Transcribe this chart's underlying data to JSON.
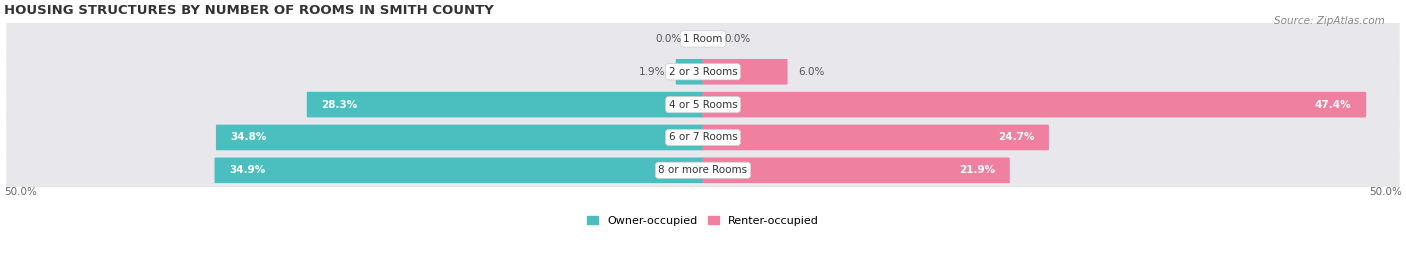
{
  "title": "HOUSING STRUCTURES BY NUMBER OF ROOMS IN SMITH COUNTY",
  "source": "Source: ZipAtlas.com",
  "categories": [
    "1 Room",
    "2 or 3 Rooms",
    "4 or 5 Rooms",
    "6 or 7 Rooms",
    "8 or more Rooms"
  ],
  "owner_values": [
    0.0,
    1.9,
    28.3,
    34.8,
    34.9
  ],
  "renter_values": [
    0.0,
    6.0,
    47.4,
    24.7,
    21.9
  ],
  "max_value": 50.0,
  "owner_color": "#4BBFBF",
  "renter_color": "#F080A0",
  "row_bg_color": "#E8E8EC",
  "label_color_dark": "#555555",
  "owner_label": "Owner-occupied",
  "renter_label": "Renter-occupied",
  "axis_label_left": "50.0%",
  "axis_label_right": "50.0%",
  "title_fontsize": 9.5,
  "source_fontsize": 7.5,
  "bar_label_fontsize": 7.5,
  "category_fontsize": 7.5,
  "legend_fontsize": 8,
  "axis_fontsize": 7.5
}
